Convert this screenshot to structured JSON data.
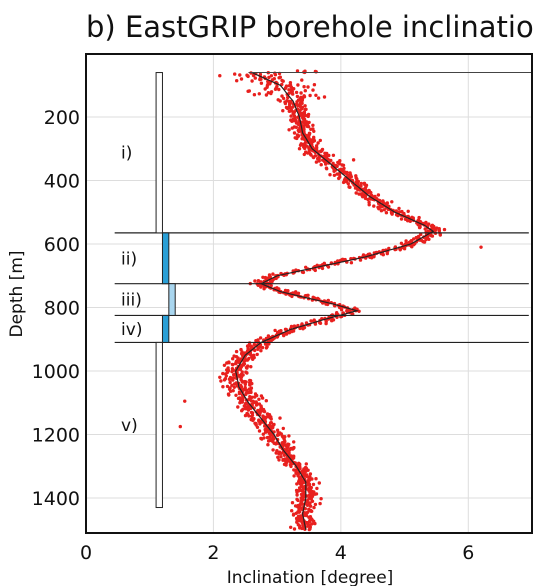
{
  "chart_data": {
    "type": "scatter",
    "title": "b) EastGRIP borehole inclination",
    "xlabel": "Inclination [degree]",
    "ylabel": "Depth [m]",
    "xlim": [
      0,
      7
    ],
    "ylim": [
      1500,
      40
    ],
    "x_ticks": [
      "0",
      "2",
      "4",
      "6"
    ],
    "y_ticks": [
      "200",
      "400",
      "600",
      "800",
      "1000",
      "1200",
      "1400"
    ],
    "grid": true,
    "series": [
      {
        "kind": "points",
        "color": "#e8201e",
        "profile": [
          [
            60,
            2.6
          ],
          [
            100,
            3.05
          ],
          [
            150,
            3.25
          ],
          [
            200,
            3.35
          ],
          [
            250,
            3.4
          ],
          [
            300,
            3.55
          ],
          [
            350,
            3.85
          ],
          [
            400,
            4.15
          ],
          [
            450,
            4.45
          ],
          [
            500,
            4.85
          ],
          [
            540,
            5.3
          ],
          [
            560,
            5.45
          ],
          [
            600,
            5.1
          ],
          [
            640,
            4.4
          ],
          [
            670,
            3.7
          ],
          [
            700,
            3.0
          ],
          [
            725,
            2.75
          ],
          [
            750,
            3.05
          ],
          [
            790,
            3.9
          ],
          [
            810,
            4.25
          ],
          [
            840,
            3.7
          ],
          [
            870,
            3.2
          ],
          [
            910,
            2.75
          ],
          [
            950,
            2.5
          ],
          [
            1000,
            2.35
          ],
          [
            1050,
            2.4
          ],
          [
            1100,
            2.55
          ],
          [
            1150,
            2.75
          ],
          [
            1200,
            2.95
          ],
          [
            1250,
            3.1
          ],
          [
            1300,
            3.3
          ],
          [
            1350,
            3.45
          ],
          [
            1400,
            3.45
          ],
          [
            1450,
            3.4
          ],
          [
            1500,
            3.45
          ]
        ]
      },
      {
        "kind": "smoothed-line",
        "color": "#222222"
      }
    ],
    "zones": [
      {
        "label": "i)",
        "top": 60,
        "bottom": 565,
        "fill": "#ffffff",
        "x_from": 1.1,
        "x_to": 1.2
      },
      {
        "label": "ii)",
        "top": 565,
        "bottom": 725,
        "fill": "#2a9fd6",
        "x_from": 1.2,
        "x_to": 1.3
      },
      {
        "label": "iii)",
        "top": 725,
        "bottom": 825,
        "fill": "#a9d6ef",
        "x_from": 1.3,
        "x_to": 1.4
      },
      {
        "label": "iv)",
        "top": 825,
        "bottom": 910,
        "fill": "#2a9fd6",
        "x_from": 1.2,
        "x_to": 1.3
      },
      {
        "label": "v)",
        "top": 910,
        "bottom": 1430,
        "fill": "#ffffff",
        "x_from": 1.1,
        "x_to": 1.2
      }
    ],
    "boundaries": [
      565,
      725,
      825,
      910
    ]
  }
}
